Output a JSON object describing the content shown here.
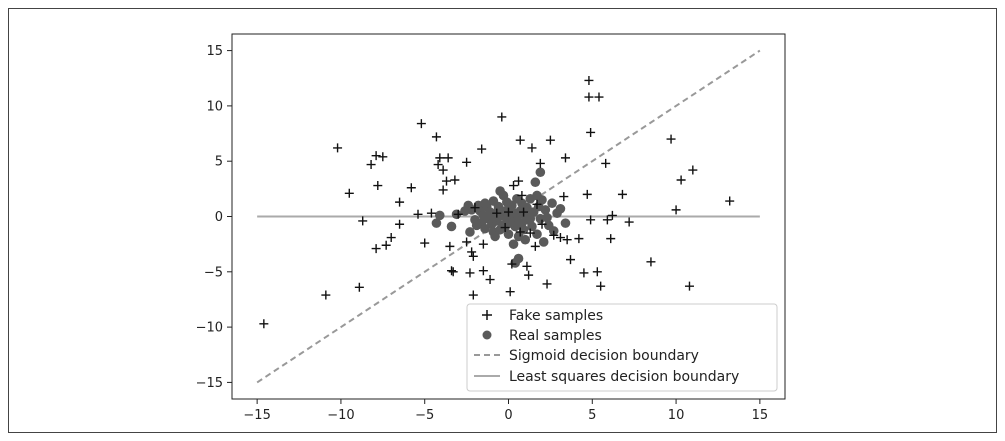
{
  "chart_data": {
    "type": "scatter",
    "title": "",
    "xlabel": "",
    "ylabel": "",
    "xlim": [
      -16.5,
      16.5
    ],
    "ylim": [
      -16.5,
      16.5
    ],
    "x_ticks": [
      -15,
      -10,
      -5,
      0,
      5,
      10,
      15
    ],
    "y_ticks": [
      -15,
      -10,
      -5,
      0,
      5,
      10,
      15
    ],
    "x_tick_labels": [
      "−15",
      "−10",
      "−5",
      "0",
      "5",
      "10",
      "15"
    ],
    "y_tick_labels": [
      "−15",
      "−10",
      "−5",
      "0",
      "5",
      "10",
      "15"
    ],
    "grid": false,
    "legend_position": "bottom-right",
    "colors": {
      "fake": "#111111",
      "real": "#5a5a5a",
      "sigmoid": "#999999",
      "least_squares": "#aaaaaa"
    },
    "series": [
      {
        "name": "Fake samples",
        "marker": "plus",
        "points": [
          [
            -14.6,
            -9.7
          ],
          [
            -10.9,
            -7.1
          ],
          [
            -10.2,
            6.2
          ],
          [
            -9.5,
            2.1
          ],
          [
            -8.9,
            -6.4
          ],
          [
            -8.7,
            -0.4
          ],
          [
            -8.2,
            4.7
          ],
          [
            -7.9,
            5.5
          ],
          [
            -7.8,
            2.8
          ],
          [
            -7.9,
            -2.9
          ],
          [
            -7.5,
            5.4
          ],
          [
            -7.3,
            -2.6
          ],
          [
            -7.0,
            -1.9
          ],
          [
            -6.5,
            -0.7
          ],
          [
            -6.5,
            1.3
          ],
          [
            -5.8,
            2.6
          ],
          [
            -5.4,
            0.2
          ],
          [
            -5.2,
            8.4
          ],
          [
            -5.0,
            -2.4
          ],
          [
            -4.6,
            0.3
          ],
          [
            -4.3,
            7.2
          ],
          [
            -4.2,
            4.7
          ],
          [
            -4.1,
            5.3
          ],
          [
            -3.9,
            4.2
          ],
          [
            -3.9,
            2.4
          ],
          [
            -3.7,
            3.2
          ],
          [
            -3.6,
            5.3
          ],
          [
            -3.5,
            -2.7
          ],
          [
            -3.4,
            -4.9
          ],
          [
            -3.3,
            -5.0
          ],
          [
            -3.2,
            3.3
          ],
          [
            -3.0,
            0.2
          ],
          [
            -2.5,
            4.9
          ],
          [
            -2.5,
            -2.3
          ],
          [
            -2.3,
            -5.1
          ],
          [
            -2.2,
            -3.2
          ],
          [
            -2.1,
            -3.6
          ],
          [
            -2.1,
            -7.1
          ],
          [
            -2.0,
            0.8
          ],
          [
            -1.6,
            6.1
          ],
          [
            -1.5,
            -4.9
          ],
          [
            -1.5,
            -2.5
          ],
          [
            -1.1,
            -5.7
          ],
          [
            -0.7,
            0.3
          ],
          [
            -0.4,
            9.0
          ],
          [
            -0.2,
            -1.0
          ],
          [
            0.1,
            -6.8
          ],
          [
            0.2,
            -4.3
          ],
          [
            0.3,
            2.8
          ],
          [
            0.6,
            3.2
          ],
          [
            0.7,
            -1.4
          ],
          [
            0.7,
            6.9
          ],
          [
            0.8,
            1.9
          ],
          [
            0.9,
            0.4
          ],
          [
            1.1,
            -4.5
          ],
          [
            1.2,
            -5.3
          ],
          [
            1.3,
            -1.5
          ],
          [
            1.4,
            6.2
          ],
          [
            1.6,
            -2.7
          ],
          [
            1.7,
            1.1
          ],
          [
            1.9,
            4.8
          ],
          [
            2.0,
            -0.7
          ],
          [
            2.3,
            -6.1
          ],
          [
            2.5,
            6.9
          ],
          [
            2.7,
            -1.7
          ],
          [
            3.1,
            -1.9
          ],
          [
            3.3,
            1.8
          ],
          [
            3.4,
            5.3
          ],
          [
            3.5,
            -2.1
          ],
          [
            3.7,
            -3.9
          ],
          [
            4.2,
            -2.0
          ],
          [
            4.5,
            -5.1
          ],
          [
            4.7,
            2.0
          ],
          [
            4.8,
            12.3
          ],
          [
            4.8,
            10.8
          ],
          [
            4.9,
            7.6
          ],
          [
            5.3,
            -5.0
          ],
          [
            5.4,
            10.8
          ],
          [
            5.5,
            -6.3
          ],
          [
            5.8,
            4.8
          ],
          [
            5.9,
            -0.3
          ],
          [
            6.1,
            -2.0
          ],
          [
            6.2,
            0.1
          ],
          [
            6.8,
            2.0
          ],
          [
            7.2,
            -0.5
          ],
          [
            8.5,
            -4.1
          ],
          [
            9.7,
            7.0
          ],
          [
            10.0,
            0.6
          ],
          [
            10.3,
            3.3
          ],
          [
            10.8,
            -6.3
          ],
          [
            11.0,
            4.2
          ],
          [
            13.2,
            1.4
          ],
          [
            4.9,
            -0.3
          ],
          [
            0.0,
            0.4
          ]
        ]
      },
      {
        "name": "Real samples",
        "marker": "circle",
        "points": [
          [
            -4.3,
            -0.6
          ],
          [
            -4.1,
            0.1
          ],
          [
            -3.4,
            -0.9
          ],
          [
            -3.1,
            0.2
          ],
          [
            -2.6,
            0.5
          ],
          [
            -2.4,
            1.0
          ],
          [
            -2.3,
            -1.4
          ],
          [
            -2.2,
            0.6
          ],
          [
            -2.0,
            -0.3
          ],
          [
            -1.8,
            1.0
          ],
          [
            -1.7,
            0.5
          ],
          [
            -1.6,
            -0.6
          ],
          [
            -1.5,
            0.1
          ],
          [
            -1.4,
            -1.1
          ],
          [
            -1.3,
            0.9
          ],
          [
            -1.2,
            -0.2
          ],
          [
            -1.1,
            0.4
          ],
          [
            -1.0,
            -0.7
          ],
          [
            -0.9,
            1.4
          ],
          [
            -0.9,
            -1.4
          ],
          [
            -0.8,
            0.2
          ],
          [
            -0.7,
            -0.4
          ],
          [
            -0.6,
            0.9
          ],
          [
            -0.5,
            -1.2
          ],
          [
            -0.5,
            2.3
          ],
          [
            -0.4,
            0.1
          ],
          [
            -0.3,
            1.9
          ],
          [
            -0.3,
            -0.8
          ],
          [
            -0.2,
            0.5
          ],
          [
            -0.1,
            -0.2
          ],
          [
            -0.1,
            1.3
          ],
          [
            0.0,
            -1.6
          ],
          [
            0.1,
            0.7
          ],
          [
            0.2,
            -0.4
          ],
          [
            0.2,
            1.0
          ],
          [
            0.3,
            -2.5
          ],
          [
            0.3,
            0.2
          ],
          [
            0.4,
            -0.9
          ],
          [
            0.5,
            1.6
          ],
          [
            0.5,
            -0.2
          ],
          [
            0.6,
            -1.8
          ],
          [
            0.7,
            0.5
          ],
          [
            0.8,
            -0.6
          ],
          [
            0.8,
            1.2
          ],
          [
            0.9,
            -1.2
          ],
          [
            1.0,
            0.1
          ],
          [
            1.0,
            -2.1
          ],
          [
            1.1,
            0.8
          ],
          [
            1.2,
            -0.3
          ],
          [
            1.3,
            1.6
          ],
          [
            1.4,
            -0.9
          ],
          [
            1.5,
            0.4
          ],
          [
            1.6,
            3.1
          ],
          [
            1.7,
            -1.6
          ],
          [
            1.8,
            0.9
          ],
          [
            1.9,
            -0.2
          ],
          [
            2.0,
            1.5
          ],
          [
            2.1,
            -2.3
          ],
          [
            2.2,
            0.6
          ],
          [
            2.4,
            -0.8
          ],
          [
            2.6,
            1.2
          ],
          [
            2.7,
            -1.3
          ],
          [
            2.9,
            0.3
          ],
          [
            3.1,
            0.7
          ],
          [
            3.4,
            -0.6
          ],
          [
            1.9,
            4.0
          ],
          [
            0.4,
            -4.2
          ],
          [
            0.6,
            -3.8
          ],
          [
            -0.8,
            -1.8
          ],
          [
            -1.9,
            -0.8
          ],
          [
            -0.2,
            -0.9
          ],
          [
            0.9,
            0.9
          ],
          [
            1.3,
            -0.2
          ],
          [
            -0.6,
            0.6
          ],
          [
            0.1,
            -0.6
          ],
          [
            -1.4,
            1.2
          ],
          [
            2.3,
            -0.1
          ],
          [
            1.7,
            1.9
          ],
          [
            -0.9,
            -0.1
          ],
          [
            0.4,
            0.3
          ]
        ]
      },
      {
        "name": "Sigmoid decision boundary",
        "style": "dashed",
        "x": [
          -15,
          15
        ],
        "y": [
          -15,
          15
        ]
      },
      {
        "name": "Least squares decision boundary",
        "style": "solid",
        "x": [
          -15,
          15
        ],
        "y": [
          0,
          0
        ]
      }
    ]
  }
}
